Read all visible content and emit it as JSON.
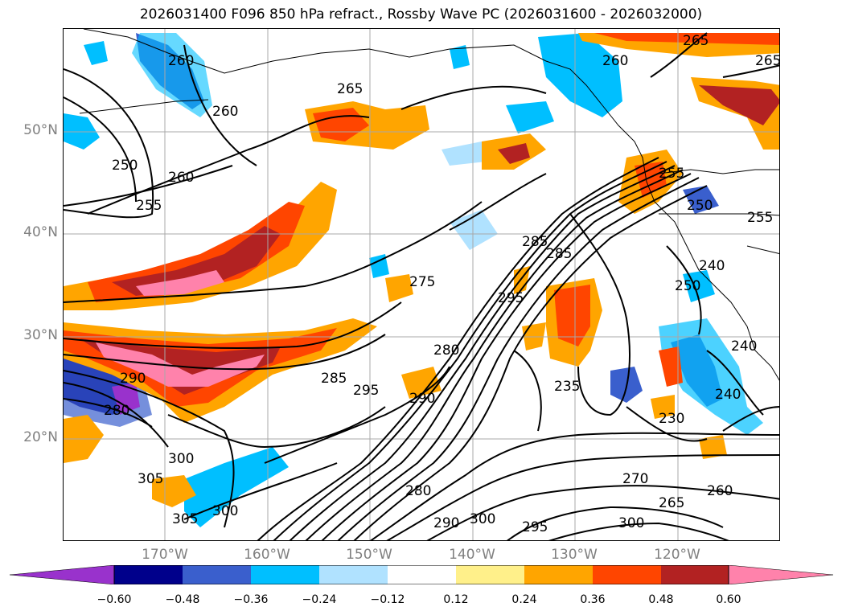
{
  "title": "2026031400 F096 850 hPa refract., Rossby Wave PC (2026031600 - 2026032000)",
  "lat_labels": [
    "50°N",
    "40°N",
    "30°N",
    "20°N"
  ],
  "lon_labels": [
    "170°W",
    "160°W",
    "150°W",
    "140°W",
    "130°W",
    "120°W"
  ],
  "colorbar": {
    "ticks": [
      "−0.60",
      "−0.48",
      "−0.36",
      "−0.24",
      "−0.12",
      "0.12",
      "0.24",
      "0.36",
      "0.48",
      "0.60"
    ],
    "colors": [
      "#9932cc",
      "#00008b",
      "#3a5fcd",
      "#00bfff",
      "#b0e2ff",
      "#ffffff",
      "#fff08a",
      "#ffa500",
      "#ff4500",
      "#b22222",
      "#ff82ab"
    ]
  },
  "contour_labels": [
    "260",
    "265",
    "260",
    "250",
    "260",
    "255",
    "265",
    "265",
    "260",
    "255",
    "250",
    "255",
    "240",
    "275",
    "285",
    "280",
    "290",
    "295",
    "290",
    "285",
    "280",
    "295",
    "300",
    "305",
    "305",
    "300",
    "280",
    "290",
    "300",
    "295",
    "300",
    "270",
    "265",
    "260",
    "235",
    "230",
    "240",
    "240",
    "250",
    "285"
  ]
}
